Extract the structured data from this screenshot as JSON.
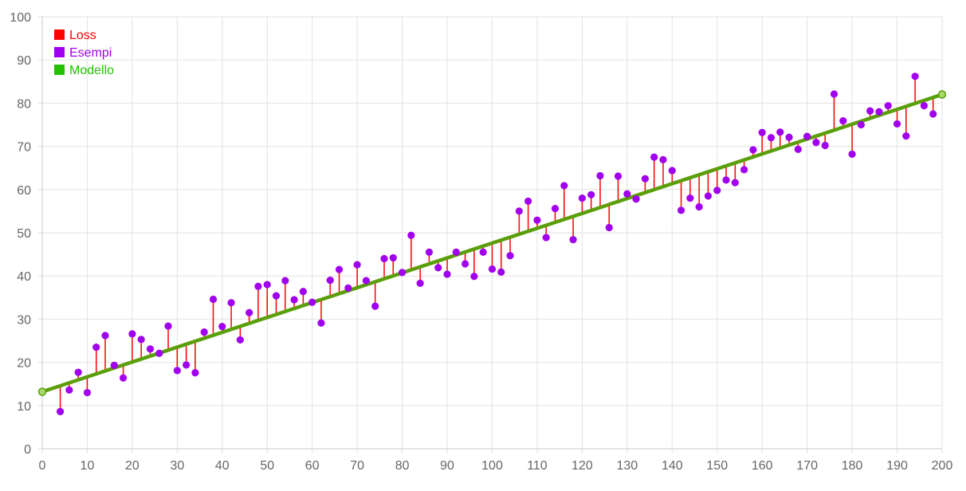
{
  "chart_data": {
    "type": "scatter",
    "xlim": [
      0,
      200
    ],
    "ylim": [
      0,
      100
    ],
    "x_ticks": [
      "0",
      "10",
      "20",
      "30",
      "40",
      "50",
      "60",
      "70",
      "80",
      "90",
      "100",
      "110",
      "120",
      "130",
      "140",
      "150",
      "160",
      "170",
      "180",
      "190",
      "200"
    ],
    "y_ticks": [
      "0",
      "10",
      "20",
      "30",
      "40",
      "50",
      "60",
      "70",
      "80",
      "90",
      "100"
    ],
    "grid": true,
    "legend_position": "top-left",
    "legend": [
      {
        "label": "Loss",
        "color": "#ff0000"
      },
      {
        "label": "Esempi",
        "color": "#a100ee"
      },
      {
        "label": "Modello",
        "color": "#22c000"
      }
    ],
    "model_line": {
      "x": [
        0,
        200
      ],
      "y": [
        13.2,
        82.0
      ],
      "color": "#5a9e0a"
    },
    "series": [
      {
        "name": "Esempi",
        "color": "#a100ee",
        "x": [
          4,
          6,
          8,
          10,
          12,
          14,
          16,
          18,
          20,
          22,
          24,
          26,
          28,
          30,
          32,
          34,
          36,
          38,
          40,
          42,
          44,
          46,
          48,
          50,
          52,
          54,
          56,
          58,
          60,
          62,
          64,
          66,
          68,
          70,
          72,
          74,
          76,
          78,
          80,
          82,
          84,
          86,
          88,
          90,
          92,
          94,
          96,
          98,
          100,
          102,
          104,
          106,
          108,
          110,
          112,
          114,
          116,
          118,
          120,
          122,
          124,
          126,
          128,
          130,
          132,
          134,
          136,
          138,
          140,
          142,
          144,
          146,
          148,
          150,
          152,
          154,
          156,
          158,
          160,
          162,
          164,
          166,
          168,
          170,
          172,
          174,
          176,
          178,
          180,
          182,
          184,
          186,
          188,
          190,
          192,
          194,
          196,
          198
        ],
        "y": [
          8.6,
          13.6,
          17.7,
          13.0,
          23.5,
          26.2,
          19.3,
          16.4,
          26.6,
          25.3,
          23.1,
          22.1,
          28.4,
          18.1,
          19.4,
          17.6,
          27.0,
          34.6,
          28.3,
          33.8,
          25.2,
          31.5,
          37.6,
          38.0,
          35.4,
          38.9,
          34.5,
          36.4,
          33.9,
          29.1,
          39.0,
          41.5,
          37.2,
          42.6,
          38.9,
          33.0,
          44.0,
          44.2,
          40.8,
          49.4,
          38.3,
          45.5,
          41.9,
          40.4,
          45.5,
          42.8,
          39.9,
          45.5,
          41.6,
          40.9,
          44.7,
          55.0,
          57.3,
          52.9,
          48.9,
          55.6,
          60.9,
          48.4,
          58.0,
          58.8,
          63.2,
          51.2,
          63.1,
          59.0,
          57.8,
          62.5,
          67.5,
          66.9,
          64.4,
          55.2,
          58.0,
          56.0,
          58.5,
          59.8,
          62.2,
          61.6,
          64.6,
          69.2,
          73.2,
          72.0,
          73.3,
          72.1,
          69.3,
          72.3,
          70.9,
          70.2,
          82.1,
          75.9,
          68.2,
          75.0,
          78.2,
          78.0,
          79.4,
          75.2,
          72.4,
          86.2,
          79.4,
          77.5
        ]
      }
    ]
  }
}
